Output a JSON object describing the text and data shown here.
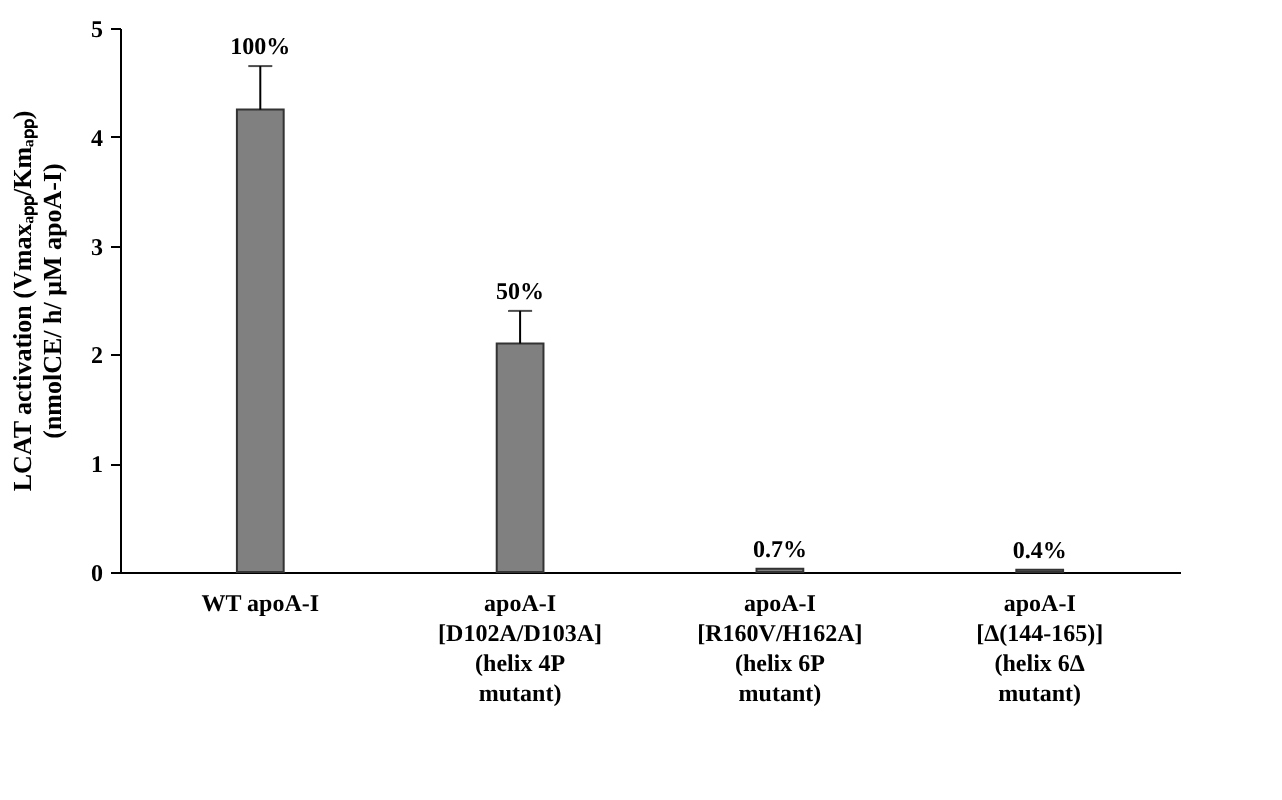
{
  "chart_data": {
    "type": "bar",
    "categories": [
      "WT apoA-I",
      "apoA-I\n[D102A/D103A]\n\n(helix 4P\nmutant)",
      "apoA-I\n[R160V/H162A]\n\n(helix 6P\nmutant)",
      "apoA-I\n[Δ(144-165)]\n\n(helix 6Δ\nmutant)"
    ],
    "values": [
      4.25,
      2.1,
      0.03,
      0.02
    ],
    "errors": [
      [
        4.25,
        4.65
      ],
      [
        2.1,
        2.4
      ],
      null,
      null
    ],
    "annotations": [
      {
        "text": "100%",
        "x": "WT apoA-I",
        "y": 4.65
      },
      {
        "text": "50%",
        "x": "apoA-I\n[D102A/D103A]\n\n(helix 4P\nmutant)",
        "y": 2.4
      },
      {
        "text": "0.7%",
        "x": "apoA-I\n[R160V/H162A]\n\n(helix 6P\nmutant)",
        "y": 0.03
      },
      {
        "text": "0.4%",
        "x": "apoA-I\n[Δ(144-165)]\n\n(helix 6Δ\nmutant)",
        "y": 0.02
      }
    ],
    "color": "#808080",
    "ylabel": "LCAT activation (Vmaxₐₚₚ/Kmₐₚₚ)\n(nmolCE/ h/ μM apoA-I)",
    "ylim": [
      0,
      5
    ],
    "yticks": [
      0,
      1,
      2,
      3,
      4,
      5
    ],
    "grid": false
  }
}
